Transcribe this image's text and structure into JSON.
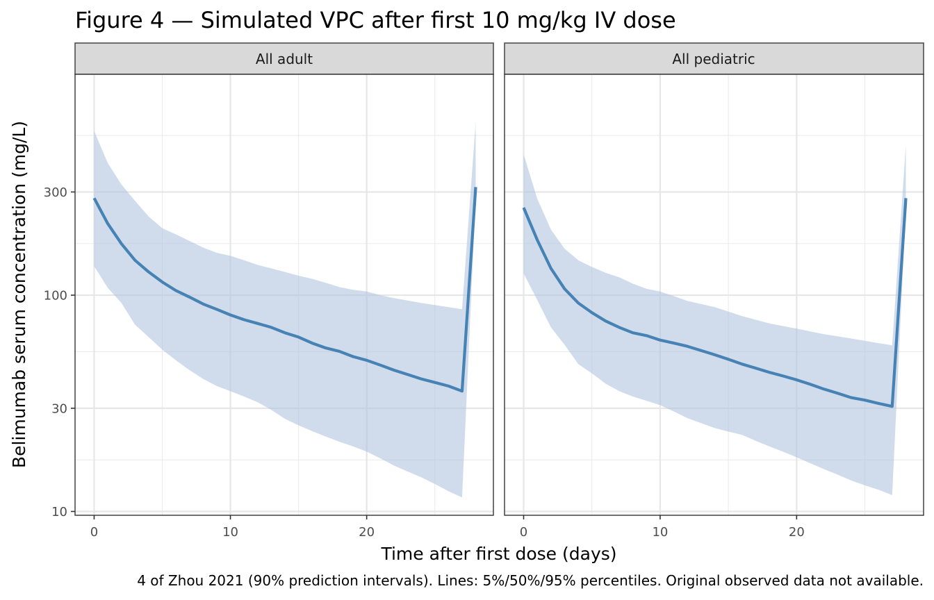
{
  "chart_data": {
    "type": "area",
    "title": "Figure 4 — Simulated VPC after first 10 mg/kg IV dose",
    "xlabel": "Time after first dose (days)",
    "ylabel": "Belimumab serum concentration (mg/L)",
    "caption": "4 of Zhou 2021 (90% prediction intervals). Lines: 5%/50%/95% percentiles. Original observed data not available.",
    "y_scale": "log10",
    "xlim": [
      -1.4,
      29.3
    ],
    "ylim": [
      9.6,
      1050
    ],
    "x_ticks": [
      0,
      10,
      20
    ],
    "x_minor": [
      5,
      15,
      25
    ],
    "y_ticks": [
      10,
      30,
      100,
      300
    ],
    "y_tick_labels": [
      "10",
      "30",
      "100",
      "300"
    ],
    "y_minor": [
      17.3,
      54.8,
      173.2,
      547.7
    ],
    "grid": true,
    "legend": "none",
    "colors": {
      "band": "#b0c4de",
      "median": "#4682b4"
    },
    "panels": [
      {
        "label": "All adult",
        "x": [
          0,
          1,
          2,
          3,
          4,
          5,
          6,
          7,
          8,
          9,
          10,
          11,
          12,
          13,
          14,
          15,
          16,
          17,
          18,
          19,
          20,
          21,
          22,
          23,
          24,
          25,
          26,
          27,
          28
        ],
        "series": [
          {
            "name": "5th percentile",
            "values": [
              136,
              108,
              92,
              73,
              64,
              56,
              50,
              45,
              41,
              38,
              36,
              34,
              32,
              29.5,
              26.8,
              25,
              23.5,
              22.2,
              21,
              20,
              18.9,
              17.6,
              16.3,
              15.3,
              14.4,
              13.4,
              12.4,
              11.6,
              280
            ]
          },
          {
            "name": "Median",
            "values": [
              281,
              214,
              173,
              145,
              128,
              115,
              105,
              98,
              91,
              86,
              81,
              77,
              74,
              71,
              67,
              64,
              60,
              57,
              55,
              52,
              50,
              47.5,
              45,
              43,
              41,
              39.5,
              38,
              36,
              316
            ]
          },
          {
            "name": "95th percentile",
            "values": [
              574,
              408,
              325,
              273,
              231,
              204,
              191,
              178,
              166,
              157,
              152,
              145,
              138,
              133,
              128,
              123,
              119,
              114,
              109,
              106,
              104,
              100,
              97,
              94.5,
              92,
              90,
              88,
              86,
              632
            ]
          }
        ]
      },
      {
        "label": "All pediatric",
        "x": [
          0,
          1,
          2,
          3,
          4,
          5,
          6,
          7,
          8,
          9,
          10,
          11,
          12,
          13,
          14,
          15,
          16,
          17,
          18,
          19,
          20,
          21,
          22,
          23,
          24,
          25,
          26,
          27,
          28
        ],
        "series": [
          {
            "name": "5th percentile",
            "values": [
              126,
              95,
              71,
              59,
              48,
              43.5,
              39,
              36,
              34,
              32.5,
              31,
              29,
              27,
              25.6,
              24.3,
              23.4,
              22.6,
              21.2,
              20,
              18.9,
              17.8,
              16.7,
              15.7,
              14.8,
              13.9,
              13.2,
              12.6,
              11.9,
              250
            ]
          },
          {
            "name": "Median",
            "values": [
              254,
              180,
              133,
              107,
              92,
              83,
              76,
              71,
              67,
              65,
              62,
              60,
              58,
              55.5,
              53,
              50.5,
              48,
              46,
              44,
              42.3,
              40.6,
              38.7,
              36.8,
              35.2,
              33.6,
              32.7,
              31.6,
              30.6,
              281
            ]
          },
          {
            "name": "95th percentile",
            "values": [
              448,
              279,
              201,
              164,
              145,
              135,
              127,
              121,
              113,
              107,
              104,
              99,
              94,
              91,
              88,
              84,
              80,
              77,
              74,
              72,
              70,
              68,
              66,
              64.5,
              63,
              61.5,
              60,
              58.6,
              493
            ]
          }
        ]
      }
    ]
  }
}
